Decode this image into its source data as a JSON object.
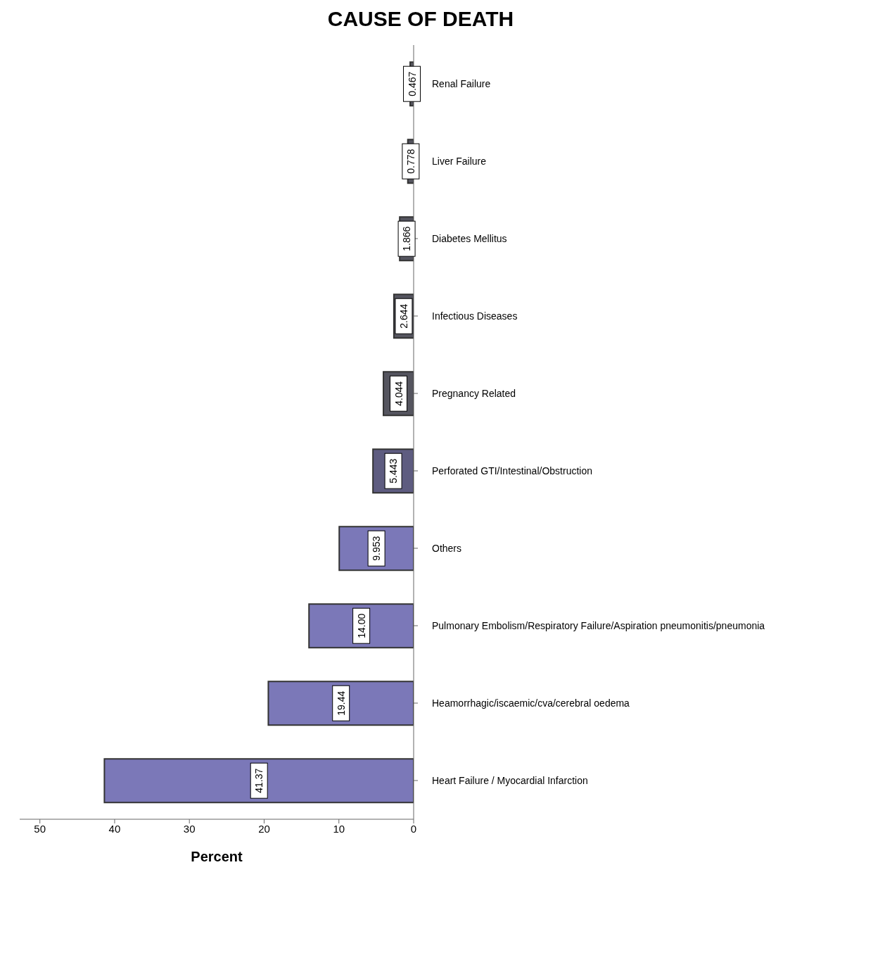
{
  "chart_data": {
    "type": "bar",
    "orientation": "horizontal",
    "title": "CAUSE OF DEATH",
    "xlabel": "Percent",
    "categories": [
      "Renal Failure",
      "Liver Failure",
      "Diabetes Mellitus",
      "Infectious Diseases",
      "Pregnancy Related",
      "Perforated GTI/Intestinal/Obstruction",
      "Others",
      "Pulmonary Embolism/Respiratory Failure/Aspiration pneumonitis/pneumonia",
      "Heamorrhagic/iscaemic/cva/cerebral oedema",
      "Heart Failure / Myocardial Infarction"
    ],
    "values": [
      0.467,
      0.778,
      1.866,
      2.644,
      4.044,
      5.443,
      9.953,
      14.0,
      19.44,
      41.37
    ],
    "value_labels": [
      "0.467",
      "0.778",
      "1.866",
      "2.644",
      "4.044",
      "5.443",
      "9.953",
      "14.00",
      "19.44",
      "41.37"
    ],
    "colors": [
      "#55555f",
      "#55555f",
      "#55555f",
      "#55555f",
      "#55555f",
      "#5e5c80",
      "#7b78b8",
      "#7b78b8",
      "#7b78b8",
      "#7b78b8"
    ],
    "xlim": [
      52.7,
      0
    ],
    "xticks": [
      0,
      10,
      20,
      30,
      40,
      50
    ],
    "grid": false,
    "legend": false
  }
}
